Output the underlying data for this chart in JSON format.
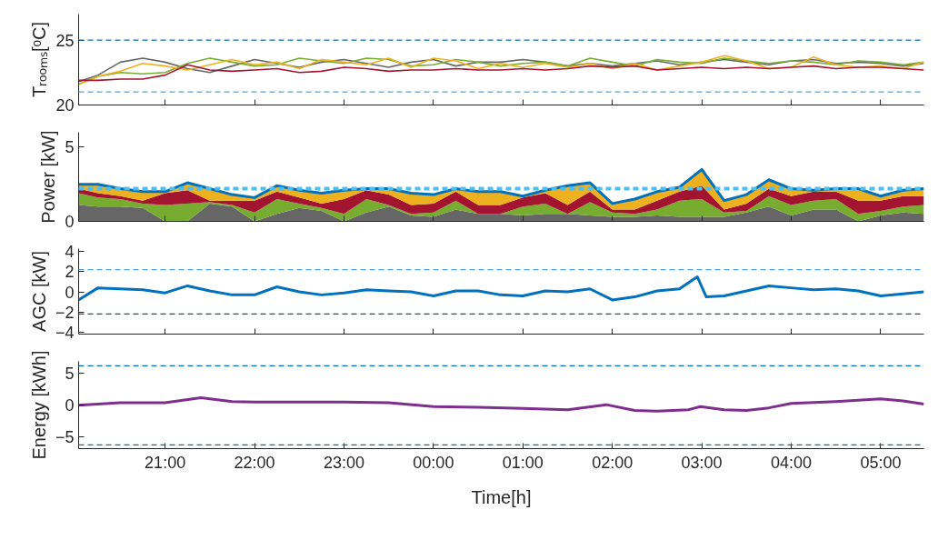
{
  "chart_data": [
    {
      "type": "line",
      "ylabel": "Tᵣₒₒₘₛ[ᵒC]",
      "xlim": [
        "2000-01-01T20:02",
        "2000-01-02T05:29"
      ],
      "ylim": [
        20,
        27
      ],
      "yticks": [
        20,
        25
      ],
      "tick_labels": "y",
      "xticks": [
        {
          "value": "2000-01-01T21:00",
          "label": null
        },
        {
          "value": "2000-01-01T22:00",
          "label": null
        },
        {
          "value": "2000-01-01T23:00",
          "label": null
        },
        {
          "value": "2000-01-02T00:00",
          "label": null
        },
        {
          "value": "2000-01-02T01:00",
          "label": null
        },
        {
          "value": "2000-01-02T02:00",
          "label": null
        },
        {
          "value": "2000-01-02T03:00",
          "label": null
        },
        {
          "value": "2000-01-02T04:00",
          "label": null
        },
        {
          "value": "2000-01-02T05:00",
          "label": null
        }
      ],
      "x": [
        "2000-01-01T20:02",
        "2000-01-01T20:15",
        "2000-01-01T20:30",
        "2000-01-01T20:45",
        "2000-01-01T21:00",
        "2000-01-01T21:15",
        "2000-01-01T21:30",
        "2000-01-01T21:45",
        "2000-01-01T22:00",
        "2000-01-01T22:15",
        "2000-01-01T22:30",
        "2000-01-01T22:45",
        "2000-01-01T23:00",
        "2000-01-01T23:15",
        "2000-01-01T23:30",
        "2000-01-01T23:45",
        "2000-01-02T00:00",
        "2000-01-02T00:15",
        "2000-01-02T00:30",
        "2000-01-02T00:45",
        "2000-01-02T01:00",
        "2000-01-02T01:15",
        "2000-01-02T01:30",
        "2000-01-02T01:45",
        "2000-01-02T02:00",
        "2000-01-02T02:15",
        "2000-01-02T02:30",
        "2000-01-02T02:45",
        "2000-01-02T03:00",
        "2000-01-02T03:15",
        "2000-01-02T03:30",
        "2000-01-02T03:45",
        "2000-01-02T04:00",
        "2000-01-02T04:15",
        "2000-01-02T04:30",
        "2000-01-02T04:45",
        "2000-01-02T05:00",
        "2000-01-02T05:15",
        "2000-01-02T05:29"
      ],
      "series": [
        {
          "color": "#666666",
          "values": [
            21.8,
            22.3,
            23.3,
            23.6,
            23.3,
            22.8,
            22.5,
            23.0,
            23.5,
            23.2,
            22.9,
            23.3,
            23.5,
            23.2,
            22.9,
            23.3,
            23.5,
            23.0,
            23.3,
            23.3,
            23.5,
            23.3,
            23.0,
            23.2,
            23.0,
            23.2,
            23.4,
            23.1,
            23.3,
            23.5,
            23.3,
            23.1,
            23.4,
            23.5,
            23.2,
            23.3,
            23.2,
            23.0,
            23.2
          ]
        },
        {
          "color": "#77ac30",
          "values": [
            21.6,
            22.2,
            22.5,
            22.4,
            22.5,
            23.2,
            23.6,
            23.3,
            23.0,
            23.1,
            23.6,
            23.4,
            23.2,
            23.6,
            23.5,
            23.0,
            23.1,
            23.5,
            23.3,
            23.0,
            23.2,
            23.3,
            23.0,
            23.6,
            23.3,
            23.0,
            23.5,
            23.3,
            23.2,
            23.6,
            23.4,
            23.2,
            23.4,
            23.3,
            23.1,
            23.4,
            23.3,
            23.1,
            23.3
          ]
        },
        {
          "color": "#edb120",
          "values": [
            21.6,
            22.2,
            22.6,
            23.2,
            23.0,
            22.7,
            23.1,
            23.5,
            23.1,
            23.3,
            22.8,
            23.5,
            23.3,
            23.1,
            23.6,
            22.9,
            23.6,
            23.4,
            22.8,
            23.2,
            22.9,
            23.2,
            22.9,
            23.2,
            22.8,
            23.2,
            22.7,
            23.0,
            23.3,
            23.8,
            23.4,
            22.8,
            22.9,
            23.7,
            23.1,
            22.9,
            23.0,
            22.8,
            23.3
          ]
        },
        {
          "color": "#a2142f",
          "values": [
            21.9,
            21.9,
            22.0,
            22.0,
            22.3,
            23.1,
            22.7,
            22.6,
            22.7,
            22.8,
            22.5,
            22.6,
            22.9,
            22.8,
            22.6,
            22.7,
            22.7,
            22.8,
            22.7,
            22.7,
            22.8,
            22.7,
            22.8,
            23.0,
            22.9,
            23.0,
            22.7,
            22.8,
            22.9,
            22.8,
            22.9,
            22.8,
            22.9,
            23.0,
            22.8,
            22.9,
            22.9,
            22.8,
            22.7
          ]
        }
      ],
      "ref_lines": [
        {
          "axis": "y",
          "value": 25,
          "color": "#0072bd",
          "line_style": "dashed"
        },
        {
          "axis": "y",
          "value": 21,
          "color": "#4da3dc",
          "line_style": "dashed"
        }
      ]
    },
    {
      "type": "area",
      "stacked": true,
      "ylabel": "Power [kW]",
      "xlim": [
        "2000-01-01T20:02",
        "2000-01-02T05:29"
      ],
      "ylim": [
        0,
        6
      ],
      "yticks": [
        0,
        5
      ],
      "tick_labels": "y",
      "xticks": [
        {
          "value": "2000-01-01T21:00",
          "label": null
        },
        {
          "value": "2000-01-01T22:00",
          "label": null
        },
        {
          "value": "2000-01-01T23:00",
          "label": null
        },
        {
          "value": "2000-01-02T00:00",
          "label": null
        },
        {
          "value": "2000-01-02T01:00",
          "label": null
        },
        {
          "value": "2000-01-02T02:00",
          "label": null
        },
        {
          "value": "2000-01-02T03:00",
          "label": null
        },
        {
          "value": "2000-01-02T04:00",
          "label": null
        },
        {
          "value": "2000-01-02T05:00",
          "label": null
        }
      ],
      "x": [
        "2000-01-01T20:02",
        "2000-01-01T20:15",
        "2000-01-01T20:30",
        "2000-01-01T20:45",
        "2000-01-01T21:00",
        "2000-01-01T21:15",
        "2000-01-01T21:30",
        "2000-01-01T21:45",
        "2000-01-01T22:00",
        "2000-01-01T22:15",
        "2000-01-01T22:30",
        "2000-01-01T22:45",
        "2000-01-01T23:00",
        "2000-01-01T23:15",
        "2000-01-01T23:30",
        "2000-01-01T23:45",
        "2000-01-02T00:00",
        "2000-01-02T00:15",
        "2000-01-02T00:30",
        "2000-01-02T00:45",
        "2000-01-02T01:00",
        "2000-01-02T01:15",
        "2000-01-02T01:30",
        "2000-01-02T01:45",
        "2000-01-02T02:00",
        "2000-01-02T02:15",
        "2000-01-02T02:30",
        "2000-01-02T02:45",
        "2000-01-02T03:00",
        "2000-01-02T03:15",
        "2000-01-02T03:30",
        "2000-01-02T03:45",
        "2000-01-02T04:00",
        "2000-01-02T04:15",
        "2000-01-02T04:30",
        "2000-01-02T04:45",
        "2000-01-02T05:00",
        "2000-01-02T05:15",
        "2000-01-02T05:29"
      ],
      "series": [
        {
          "color": "#666666",
          "values": [
            1.1,
            1.0,
            1.0,
            0.9,
            0.0,
            0.0,
            1.2,
            1.0,
            0.0,
            0.5,
            0.9,
            0.7,
            0.0,
            0.6,
            1.0,
            0.4,
            0.3,
            0.8,
            0.5,
            0.5,
            0.4,
            0.5,
            0.5,
            0.4,
            0.3,
            0.3,
            0.4,
            0.3,
            0.3,
            0.3,
            0.6,
            1.0,
            0.4,
            0.8,
            0.8,
            0.0,
            0.4,
            0.6,
            0.5
          ]
        },
        {
          "color": "#77ac30",
          "values": [
            0.8,
            0.6,
            0.5,
            0.3,
            1.1,
            1.2,
            0.1,
            0.1,
            0.6,
            1.0,
            0.3,
            0.2,
            0.5,
            0.9,
            0.1,
            0.1,
            0.3,
            0.6,
            0.0,
            0.0,
            0.6,
            0.7,
            0.0,
            0.9,
            0.3,
            0.2,
            0.4,
            1.1,
            1.2,
            0.3,
            0.1,
            0.7,
            0.7,
            0.6,
            0.7,
            0.5,
            0.3,
            0.4,
            0.6
          ]
        },
        {
          "color": "#a2142f",
          "values": [
            0.3,
            0.3,
            0.2,
            0.2,
            0.8,
            0.9,
            0.1,
            0.3,
            0.8,
            0.5,
            0.4,
            0.3,
            1.0,
            0.6,
            0.7,
            0.6,
            0.6,
            0.6,
            0.6,
            0.6,
            0.6,
            0.7,
            0.6,
            0.7,
            0.2,
            0.3,
            0.6,
            0.6,
            0.9,
            0.2,
            0.5,
            0.5,
            0.6,
            0.6,
            0.5,
            0.9,
            0.7,
            0.7,
            0.6
          ]
        },
        {
          "color": "#edb120",
          "values": [
            0.3,
            0.6,
            0.5,
            0.6,
            0.1,
            0.5,
            0.8,
            0.4,
            0.2,
            0.4,
            0.5,
            0.7,
            0.6,
            0.1,
            0.4,
            0.8,
            0.6,
            0.2,
            0.9,
            0.9,
            0.1,
            0.2,
            1.3,
            0.6,
            0.4,
            0.7,
            0.6,
            0.3,
            1.1,
            0.6,
            0.6,
            0.6,
            0.5,
            0.1,
            0.2,
            0.8,
            0.3,
            0.4,
            0.5
          ]
        },
        {
          "type": "line",
          "color": "#0072bd",
          "values": [
            2.5,
            2.5,
            2.2,
            2.0,
            2.0,
            2.6,
            2.2,
            1.8,
            1.6,
            2.4,
            2.1,
            1.9,
            2.1,
            2.2,
            2.2,
            1.9,
            1.8,
            2.2,
            2.0,
            2.0,
            1.7,
            2.1,
            2.4,
            2.6,
            1.2,
            1.5,
            2.0,
            2.3,
            3.5,
            1.4,
            1.8,
            2.8,
            2.2,
            2.1,
            2.2,
            2.2,
            1.7,
            2.1,
            2.2
          ]
        }
      ],
      "ref_lines": [
        {
          "axis": "y",
          "value": 2.2,
          "color": "#4dbeee",
          "line_style": "dashed"
        }
      ]
    },
    {
      "type": "line",
      "ylabel": "AGC [kW]",
      "xlim": [
        "2000-01-01T20:02",
        "2000-01-02T05:29"
      ],
      "ylim": [
        -4.2,
        4.3
      ],
      "yticks": [
        -4,
        -2,
        0,
        2,
        4
      ],
      "tick_labels": "y",
      "xticks": [
        {
          "value": "2000-01-01T21:00",
          "label": null
        },
        {
          "value": "2000-01-01T22:00",
          "label": null
        },
        {
          "value": "2000-01-01T23:00",
          "label": null
        },
        {
          "value": "2000-01-02T00:00",
          "label": null
        },
        {
          "value": "2000-01-02T01:00",
          "label": null
        },
        {
          "value": "2000-01-02T02:00",
          "label": null
        },
        {
          "value": "2000-01-02T03:00",
          "label": null
        },
        {
          "value": "2000-01-02T04:00",
          "label": null
        },
        {
          "value": "2000-01-02T05:00",
          "label": null
        }
      ],
      "x": [
        "2000-01-01T20:02",
        "2000-01-01T20:15",
        "2000-01-01T20:30",
        "2000-01-01T20:45",
        "2000-01-01T21:00",
        "2000-01-01T21:15",
        "2000-01-01T21:30",
        "2000-01-01T21:45",
        "2000-01-01T22:00",
        "2000-01-01T22:15",
        "2000-01-01T22:30",
        "2000-01-01T22:45",
        "2000-01-01T23:00",
        "2000-01-01T23:15",
        "2000-01-01T23:30",
        "2000-01-01T23:45",
        "2000-01-02T00:00",
        "2000-01-02T00:15",
        "2000-01-02T00:30",
        "2000-01-02T00:45",
        "2000-01-02T01:00",
        "2000-01-02T01:15",
        "2000-01-02T01:30",
        "2000-01-02T01:45",
        "2000-01-02T02:00",
        "2000-01-02T02:15",
        "2000-01-02T02:30",
        "2000-01-02T02:45",
        "2000-01-02T02:57",
        "2000-01-02T03:03",
        "2000-01-02T03:15",
        "2000-01-02T03:30",
        "2000-01-02T03:45",
        "2000-01-02T04:00",
        "2000-01-02T04:15",
        "2000-01-02T04:30",
        "2000-01-02T04:45",
        "2000-01-02T05:00",
        "2000-01-02T05:15",
        "2000-01-02T05:29"
      ],
      "series": [
        {
          "color": "#0072bd",
          "values": [
            -0.8,
            0.4,
            0.3,
            0.2,
            -0.1,
            0.6,
            0.1,
            -0.3,
            -0.3,
            0.5,
            0.0,
            -0.3,
            -0.1,
            0.2,
            0.1,
            0.0,
            -0.4,
            0.1,
            0.1,
            -0.3,
            -0.4,
            0.1,
            0.0,
            0.3,
            -0.8,
            -0.5,
            0.1,
            0.3,
            1.5,
            -0.5,
            -0.4,
            0.1,
            0.6,
            0.4,
            0.2,
            0.3,
            0.1,
            -0.4,
            -0.2,
            0.0
          ]
        }
      ],
      "ref_lines": [
        {
          "axis": "y",
          "value": 2.2,
          "color": "#4da3dc",
          "line_style": "dashed"
        },
        {
          "axis": "y",
          "value": -2.2,
          "color": "#1f4f7a",
          "line_style": "dashed"
        }
      ]
    },
    {
      "type": "line",
      "ylabel": "Energy [kWh]",
      "xlabel": "Time[h]",
      "xlim": [
        "2000-01-01T20:02",
        "2000-01-02T05:29"
      ],
      "ylim": [
        -6.8,
        6.9
      ],
      "yticks": [
        -5,
        0,
        5
      ],
      "xticks": [
        {
          "value": "2000-01-01T21:00",
          "label": "21:00"
        },
        {
          "value": "2000-01-01T22:00",
          "label": "22:00"
        },
        {
          "value": "2000-01-01T23:00",
          "label": "23:00"
        },
        {
          "value": "2000-01-02T00:00",
          "label": "00:00"
        },
        {
          "value": "2000-01-02T01:00",
          "label": "01:00"
        },
        {
          "value": "2000-01-02T02:00",
          "label": "02:00"
        },
        {
          "value": "2000-01-02T03:00",
          "label": "03:00"
        },
        {
          "value": "2000-01-02T04:00",
          "label": "04:00"
        },
        {
          "value": "2000-01-02T05:00",
          "label": "05:00"
        }
      ],
      "x": [
        "2000-01-01T20:02",
        "2000-01-01T20:30",
        "2000-01-01T21:00",
        "2000-01-01T21:24",
        "2000-01-01T21:45",
        "2000-01-01T22:00",
        "2000-01-01T22:30",
        "2000-01-01T23:00",
        "2000-01-01T23:30",
        "2000-01-02T00:00",
        "2000-01-02T00:30",
        "2000-01-02T01:00",
        "2000-01-02T01:30",
        "2000-01-02T01:56",
        "2000-01-02T02:15",
        "2000-01-02T02:30",
        "2000-01-02T02:51",
        "2000-01-02T02:59",
        "2000-01-02T03:15",
        "2000-01-02T03:30",
        "2000-01-02T03:45",
        "2000-01-02T04:00",
        "2000-01-02T04:30",
        "2000-01-02T05:00",
        "2000-01-02T05:15",
        "2000-01-02T05:29"
      ],
      "series": [
        {
          "color": "#7e2f8e",
          "values": [
            0.0,
            0.4,
            0.4,
            1.2,
            0.6,
            0.5,
            0.5,
            0.5,
            0.4,
            -0.2,
            -0.3,
            -0.5,
            -0.7,
            0.1,
            -0.8,
            -0.9,
            -0.7,
            -0.2,
            -0.7,
            -0.8,
            -0.4,
            0.3,
            0.6,
            1.0,
            0.7,
            0.2
          ]
        }
      ],
      "ref_lines": [
        {
          "axis": "y",
          "value": 6.2,
          "color": "#0072bd",
          "line_style": "dashed"
        },
        {
          "axis": "y",
          "value": -6.2,
          "color": "#0072bd",
          "line_style": "dashed"
        }
      ]
    }
  ]
}
